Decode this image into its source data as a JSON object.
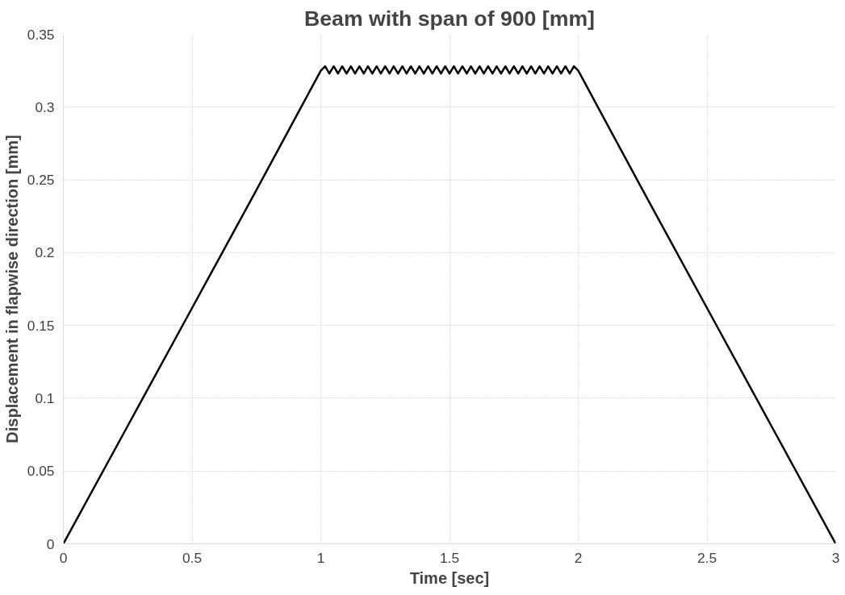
{
  "chart_data": {
    "type": "line",
    "title": "Beam with span of 900 [mm]",
    "xlabel": "Time [sec]",
    "ylabel": "Displacement in flapwise direction [mm]",
    "xlim": [
      0,
      3
    ],
    "xticks": [
      0,
      0.5,
      1,
      1.5,
      2,
      2.5,
      3
    ],
    "ylim": [
      0,
      0.35
    ],
    "yticks": [
      0,
      0.05,
      0.1,
      0.15,
      0.2,
      0.25,
      0.3,
      0.35
    ],
    "grid": true,
    "marker": "none",
    "line_style": "solid",
    "series": [
      {
        "color": "#000000",
        "x": [
          0,
          0.25,
          0.5,
          0.75,
          1,
          1.017,
          1.033,
          1.05,
          1.067,
          1.083,
          1.1,
          1.117,
          1.133,
          1.15,
          1.167,
          1.183,
          1.2,
          1.217,
          1.233,
          1.25,
          1.267,
          1.283,
          1.3,
          1.317,
          1.333,
          1.35,
          1.367,
          1.383,
          1.4,
          1.417,
          1.433,
          1.45,
          1.467,
          1.483,
          1.5,
          1.517,
          1.533,
          1.55,
          1.567,
          1.583,
          1.6,
          1.617,
          1.633,
          1.65,
          1.667,
          1.683,
          1.7,
          1.717,
          1.733,
          1.75,
          1.767,
          1.783,
          1.8,
          1.817,
          1.833,
          1.85,
          1.867,
          1.883,
          1.9,
          1.917,
          1.933,
          1.95,
          1.967,
          1.983,
          2,
          2.25,
          2.5,
          2.75,
          3
        ],
        "values": [
          0,
          0.081,
          0.162,
          0.243,
          0.325,
          0.328,
          0.323,
          0.328,
          0.323,
          0.328,
          0.323,
          0.328,
          0.323,
          0.328,
          0.323,
          0.328,
          0.323,
          0.328,
          0.323,
          0.328,
          0.323,
          0.328,
          0.323,
          0.328,
          0.323,
          0.328,
          0.323,
          0.328,
          0.323,
          0.328,
          0.323,
          0.328,
          0.323,
          0.328,
          0.323,
          0.328,
          0.323,
          0.328,
          0.323,
          0.328,
          0.323,
          0.328,
          0.323,
          0.328,
          0.323,
          0.328,
          0.323,
          0.328,
          0.323,
          0.328,
          0.323,
          0.328,
          0.323,
          0.328,
          0.323,
          0.328,
          0.323,
          0.328,
          0.323,
          0.328,
          0.323,
          0.328,
          0.323,
          0.328,
          0.325,
          0.243,
          0.162,
          0.081,
          0
        ]
      }
    ]
  }
}
